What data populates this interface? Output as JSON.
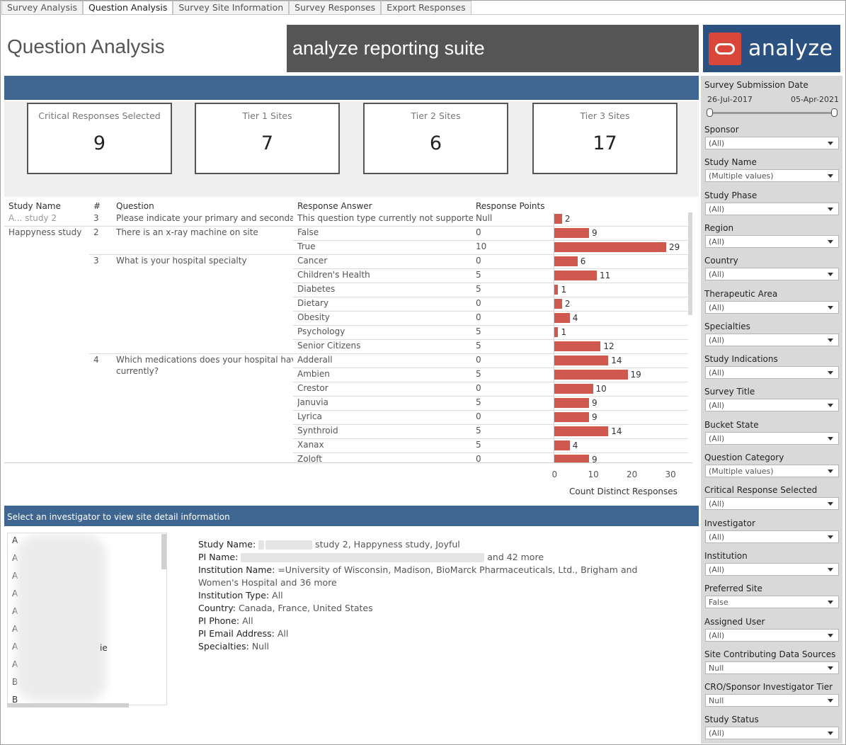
{
  "tabs": [
    {
      "label": "Survey Analysis"
    },
    {
      "label": "Question Analysis"
    },
    {
      "label": "Survey Site Information"
    },
    {
      "label": "Survey Responses"
    },
    {
      "label": "Export Responses"
    }
  ],
  "page_title": "Question Analysis",
  "banner": "analyze reporting suite",
  "logo_text": "analyze",
  "kpis": [
    {
      "label": "Critical Responses Selected",
      "value": "9"
    },
    {
      "label": "Tier 1 Sites",
      "value": "7"
    },
    {
      "label": "Tier 2 Sites",
      "value": "6"
    },
    {
      "label": "Tier 3 Sites",
      "value": "17"
    }
  ],
  "table": {
    "headers": {
      "study": "Study Name",
      "num": "#",
      "question": "Question",
      "answer": "Response Answer",
      "points": "Response Points"
    },
    "row_first_study": "A... study 2",
    "studies": [
      "Happyness study"
    ],
    "questions": [
      {
        "num": "3",
        "text": "Please indicate your primary and secondar.."
      },
      {
        "num": "2",
        "text": "There is an x-ray machine on site"
      },
      {
        "num": "3",
        "text": "What is your hospital specialty"
      },
      {
        "num": "4",
        "text": "Which medications does your hospital have",
        "text2": "currently?"
      }
    ],
    "rows": [
      {
        "answer": "This question type currently not supporte..",
        "points": "Null",
        "count": 2
      },
      {
        "answer": "False",
        "points": "0",
        "count": 9
      },
      {
        "answer": "True",
        "points": "10",
        "count": 29
      },
      {
        "answer": "Cancer",
        "points": "0",
        "count": 6
      },
      {
        "answer": "Children's Health",
        "points": "5",
        "count": 11
      },
      {
        "answer": "Diabetes",
        "points": "5",
        "count": 1
      },
      {
        "answer": "Dietary",
        "points": "0",
        "count": 2
      },
      {
        "answer": "Obesity",
        "points": "0",
        "count": 4
      },
      {
        "answer": "Psychology",
        "points": "5",
        "count": 1
      },
      {
        "answer": "Senior Citizens",
        "points": "5",
        "count": 12
      },
      {
        "answer": "Adderall",
        "points": "0",
        "count": 14
      },
      {
        "answer": "Ambien",
        "points": "5",
        "count": 19
      },
      {
        "answer": "Crestor",
        "points": "0",
        "count": 10
      },
      {
        "answer": "Januvia",
        "points": "5",
        "count": 9
      },
      {
        "answer": "Lyrica",
        "points": "0",
        "count": 9
      },
      {
        "answer": "Synthroid",
        "points": "5",
        "count": 14
      },
      {
        "answer": "Xanax",
        "points": "5",
        "count": 4
      },
      {
        "answer": "Zoloft",
        "points": "0",
        "count": 9
      }
    ]
  },
  "chart_data": {
    "type": "bar",
    "orientation": "horizontal",
    "categories": [
      "This question type currently not supporte..",
      "False",
      "True",
      "Cancer",
      "Children's Health",
      "Diabetes",
      "Dietary",
      "Obesity",
      "Psychology",
      "Senior Citizens",
      "Adderall",
      "Ambien",
      "Crestor",
      "Januvia",
      "Lyrica",
      "Synthroid",
      "Xanax",
      "Zoloft"
    ],
    "values": [
      2,
      9,
      29,
      6,
      11,
      1,
      2,
      4,
      1,
      12,
      14,
      19,
      10,
      9,
      9,
      14,
      4,
      9
    ],
    "xlabel": "Count Distinct Responses",
    "xticks": [
      "0",
      "10",
      "20",
      "30"
    ],
    "xlim": [
      0,
      34
    ],
    "bar_color": "#d0594f"
  },
  "investigator_bar": "Select an investigator to view site detail information",
  "investigators": [
    "A",
    "A",
    "A",
    "A",
    "A",
    "A",
    "A",
    "A",
    "B",
    "B"
  ],
  "investigator_partial": "ie",
  "detail": {
    "study_name_label": "Study Name:",
    "study_name_value": "study 2, Happyness study, Joyful",
    "pi_name_label": "PI Name:",
    "pi_name_value": "and 42 more",
    "institution_label": "Institution Name:",
    "institution_value_1": "=University of Wisconsin, Madison, BioMarck Pharmaceuticals, Ltd., Brigham and",
    "institution_value_2": "Women's Hospital and 36 more",
    "inst_type_label": "Institution Type:",
    "inst_type_value": "All",
    "country_label": "Country:",
    "country_value": "Canada, France, United States",
    "pi_phone_label": "PI Phone:",
    "pi_phone_value": "All",
    "pi_email_label": "PI Email Address:",
    "pi_email_value": "All",
    "specialties_label": "Specialties:",
    "specialties_value": "Null"
  },
  "filters": {
    "date_label": "Survey Submission Date",
    "date_start": "26-Jul-2017",
    "date_end": "05-Apr-2021",
    "items": [
      {
        "label": "Sponsor",
        "value": "(All)"
      },
      {
        "label": "Study Name",
        "value": "(Multiple values)"
      },
      {
        "label": "Study Phase",
        "value": "(All)"
      },
      {
        "label": "Region",
        "value": "(All)"
      },
      {
        "label": "Country",
        "value": "(All)"
      },
      {
        "label": "Therapeutic Area",
        "value": "(All)"
      },
      {
        "label": "Specialties",
        "value": "(All)"
      },
      {
        "label": "Study Indications",
        "value": "(All)"
      },
      {
        "label": "Survey Title",
        "value": "(All)"
      },
      {
        "label": "Bucket State",
        "value": "(All)"
      },
      {
        "label": "Question Category",
        "value": "(Multiple values)"
      },
      {
        "label": "Critical Response Selected",
        "value": "(All)"
      },
      {
        "label": "Investigator",
        "value": "(All)"
      },
      {
        "label": "Institution",
        "value": "(All)"
      },
      {
        "label": "Preferred Site",
        "value": "False"
      },
      {
        "label": "Assigned User",
        "value": "(All)"
      },
      {
        "label": "Site Contributing Data Sources",
        "value": "Null"
      },
      {
        "label": "CRO/Sponsor Investigator Tier",
        "value": "Null"
      },
      {
        "label": "Study Status",
        "value": "(All)"
      }
    ]
  }
}
